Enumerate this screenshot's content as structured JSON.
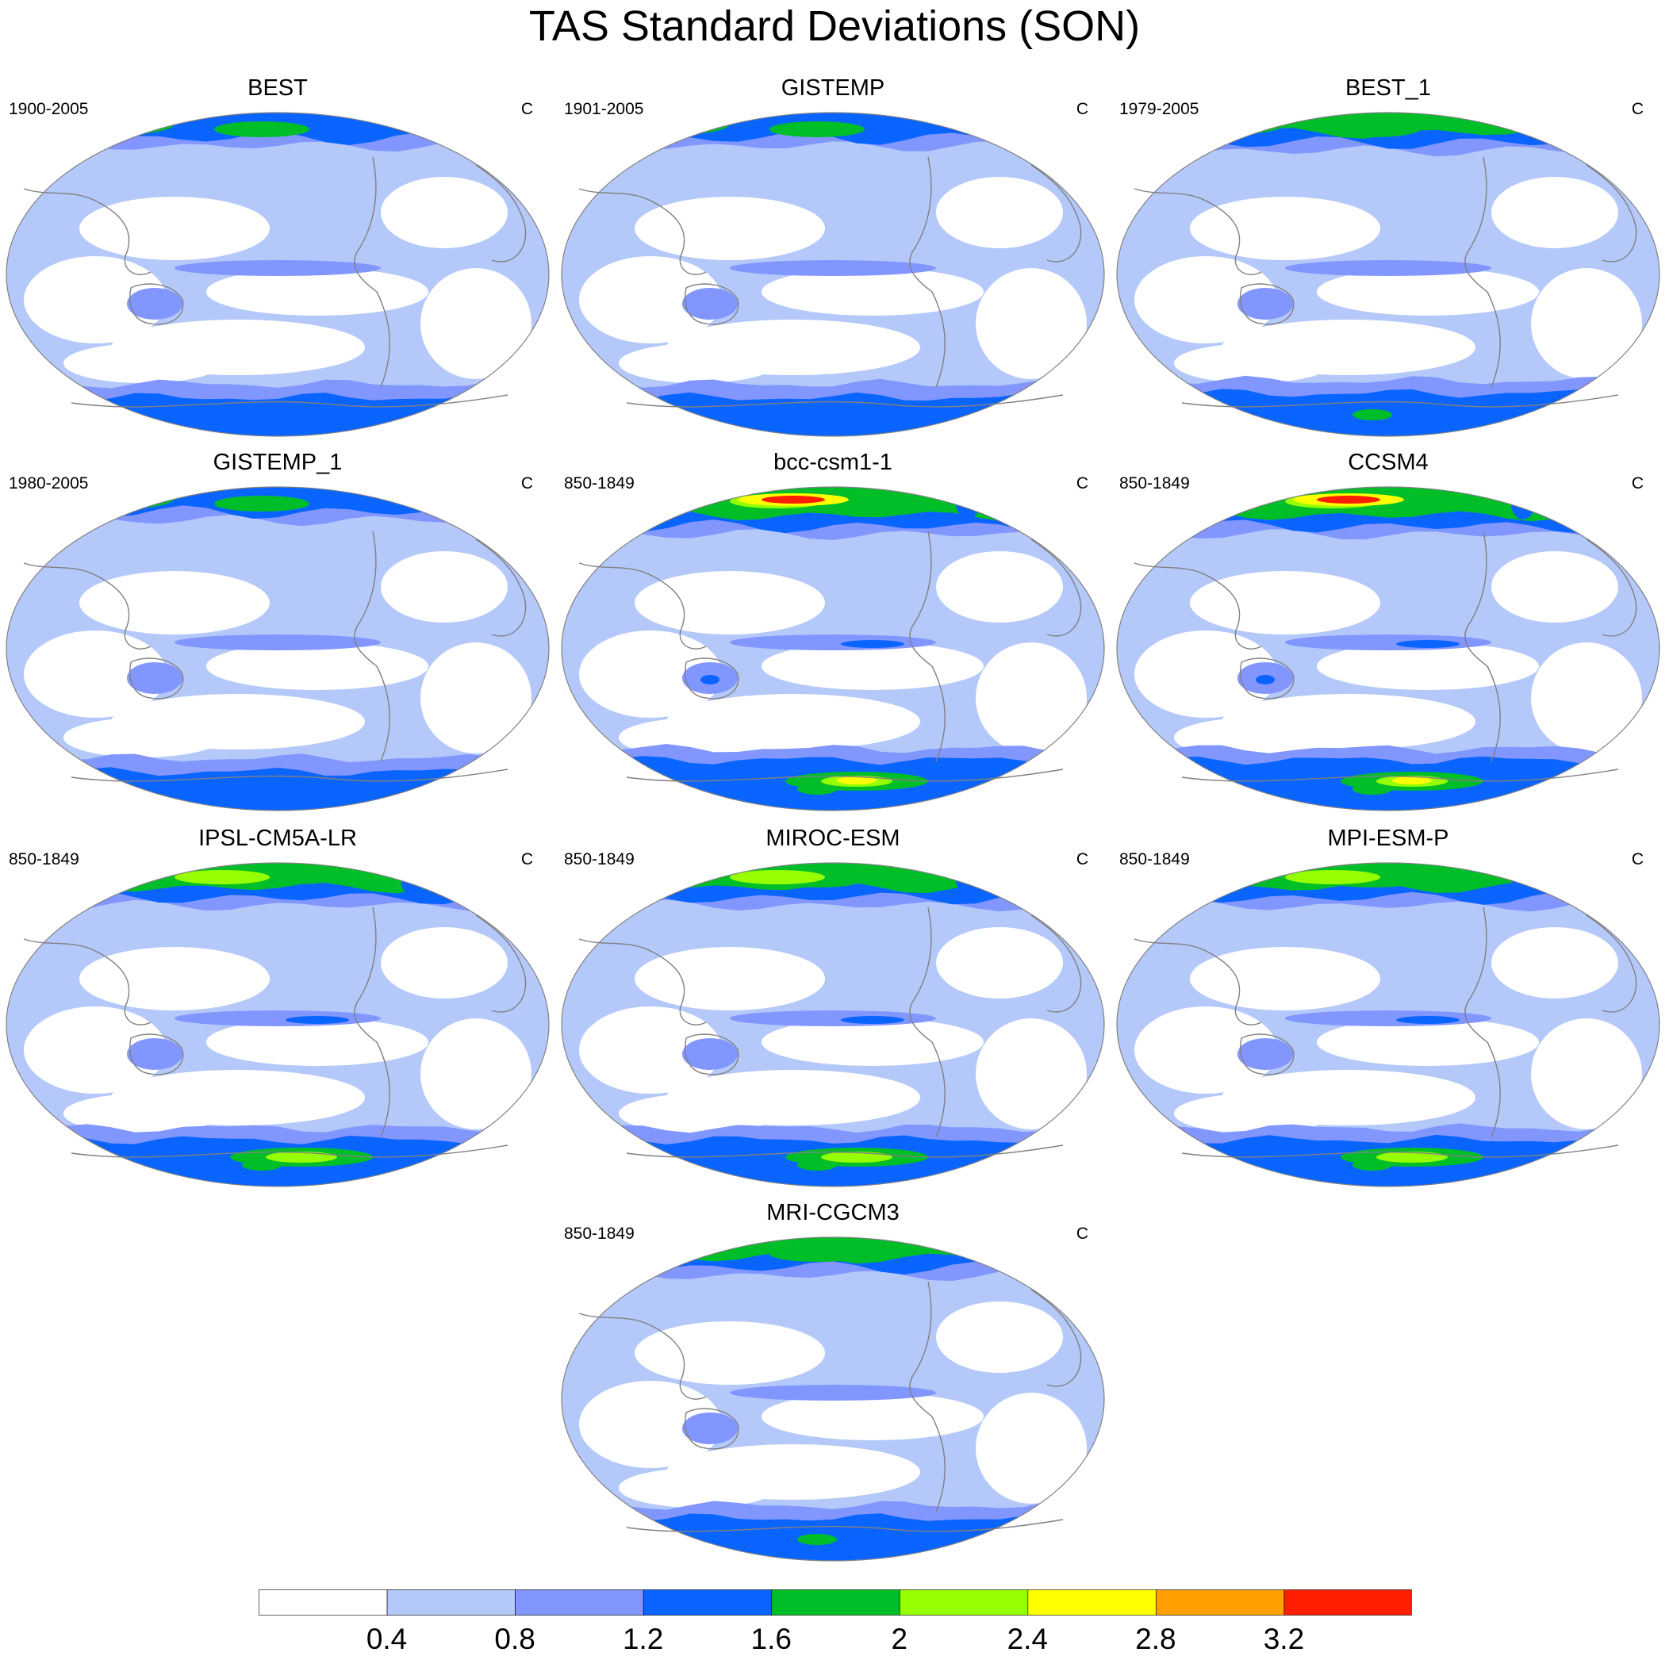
{
  "title": "TAS Standard Deviations (SON)",
  "colors": {
    "levels": [
      "#ffffff",
      "#b4c8fa",
      "#8296ff",
      "#0a64ff",
      "#00be28",
      "#96ff00",
      "#ffff00",
      "#ffa000",
      "#ff1e00"
    ],
    "coast": "#808080",
    "outline": "#808080"
  },
  "colorbar": {
    "labels": [
      "0.4",
      "0.8",
      "1.2",
      "1.6",
      "2",
      "2.4",
      "2.8",
      "3.2"
    ]
  },
  "panels": [
    {
      "title": "BEST",
      "period": "1900-2005",
      "units": "C",
      "intensity": 1
    },
    {
      "title": "GISTEMP",
      "period": "1901-2005",
      "units": "C",
      "intensity": 1
    },
    {
      "title": "BEST_1",
      "period": "1979-2005",
      "units": "C",
      "intensity": 2
    },
    {
      "title": "GISTEMP_1",
      "period": "1980-2005",
      "units": "C",
      "intensity": 1
    },
    {
      "title": "bcc-csm1-1",
      "period": "850-1849",
      "units": "C",
      "intensity": 4
    },
    {
      "title": "CCSM4",
      "period": "850-1849",
      "units": "C",
      "intensity": 4
    },
    {
      "title": "IPSL-CM5A-LR",
      "period": "850-1849",
      "units": "C",
      "intensity": 3
    },
    {
      "title": "MIROC-ESM",
      "period": "850-1849",
      "units": "C",
      "intensity": 3
    },
    {
      "title": "MPI-ESM-P",
      "period": "850-1849",
      "units": "C",
      "intensity": 3
    },
    {
      "title": "MRI-CGCM3",
      "period": "850-1849",
      "units": "C",
      "intensity": 2
    }
  ]
}
